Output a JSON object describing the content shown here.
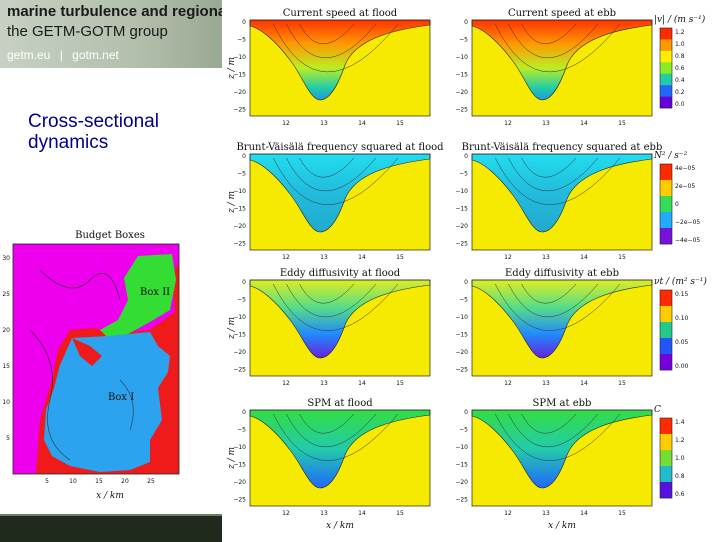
{
  "header": {
    "line1": "marine turbulence and regiona",
    "line2": "the GETM-GOTM group",
    "links": [
      "getm.eu",
      "|",
      "gotm.net"
    ]
  },
  "slide": {
    "title": "Cross-sectional\ndynamics"
  },
  "budget_map": {
    "title": "Budget Boxes",
    "box_labels": [
      "Box II",
      "Box I"
    ],
    "xlabel": "x / km",
    "x_ticks": [
      "5",
      "10",
      "15",
      "20",
      "25"
    ],
    "y_ticks": [
      "30",
      "25",
      "20",
      "15",
      "10",
      "5"
    ],
    "colors": {
      "land": "#ef1b1b",
      "outer": "#ee00ee",
      "box1": "#2ba3ee",
      "box2": "#33dd33"
    }
  },
  "panels": [
    {
      "title": "Current speed at flood",
      "scheme": "speed",
      "ylabel": "z / m"
    },
    {
      "title": "Current speed at ebb",
      "scheme": "speed",
      "ylabel": ""
    },
    {
      "title": "Brunt-Väisälä frequency squared at flood",
      "scheme": "bvf",
      "ylabel": "z / m"
    },
    {
      "title": "Brunt-Väisälä frequency squared at ebb",
      "scheme": "bvf",
      "ylabel": ""
    },
    {
      "title": "Eddy diffusivity at flood",
      "scheme": "eddy",
      "ylabel": "z / m"
    },
    {
      "title": "Eddy diffusivity at ebb",
      "scheme": "eddy",
      "ylabel": ""
    },
    {
      "title": "SPM at flood",
      "scheme": "spm",
      "ylabel": "z / m"
    },
    {
      "title": "SPM at ebb",
      "scheme": "spm",
      "ylabel": ""
    }
  ],
  "panel_axes": {
    "y_ticks": [
      "0",
      "−5",
      "−10",
      "−15",
      "−20",
      "−25"
    ],
    "x_ticks": [
      "12",
      "13",
      "14",
      "15"
    ],
    "xlabel": "x / km"
  },
  "colorbars": [
    {
      "label": "|v| / (m s⁻¹)",
      "ticks": [
        "1.2",
        "1.0",
        "0.8",
        "0.6",
        "0.4",
        "0.2",
        "0.0"
      ],
      "colors": [
        "#ff2a00",
        "#ff9900",
        "#ffee00",
        "#88ee22",
        "#22ccaa",
        "#2266ff",
        "#6600dd"
      ]
    },
    {
      "label": "N² / s⁻²",
      "ticks": [
        "4e−05",
        "2e−05",
        "0",
        "−2e−05",
        "−4e−05"
      ],
      "colors": [
        "#ff2a00",
        "#ffcc00",
        "#33dd55",
        "#22aaff",
        "#7711dd"
      ]
    },
    {
      "label": "νt / (m² s⁻¹)",
      "ticks": [
        "0.15",
        "0.10",
        "0.05",
        "0.00"
      ],
      "colors": [
        "#ff2a00",
        "#ffcc00",
        "#22cc88",
        "#2255ff",
        "#7700dd"
      ]
    },
    {
      "label": "C",
      "ticks": [
        "1.4",
        "1.2",
        "1.0",
        "0.8",
        "0.6"
      ],
      "colors": [
        "#ff2a00",
        "#ffcc00",
        "#77dd33",
        "#22bbcc",
        "#5511dd"
      ]
    }
  ]
}
